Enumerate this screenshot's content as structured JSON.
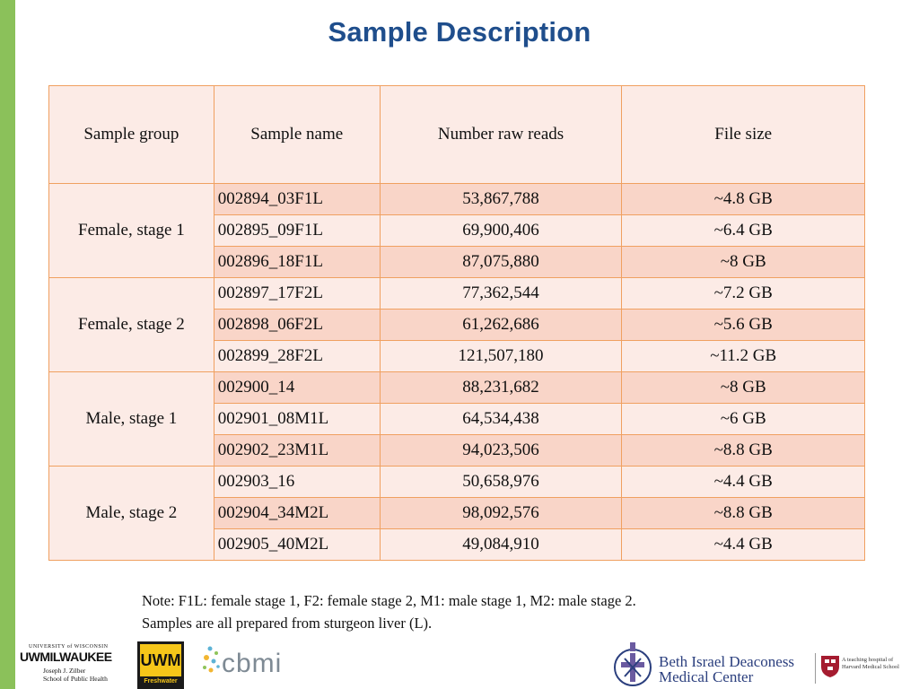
{
  "title": "Sample Description",
  "table": {
    "headers": [
      "Sample group",
      "Sample name",
      "Number raw reads",
      "File size"
    ],
    "groups": [
      {
        "group": "Female, stage 1",
        "rows": [
          {
            "name": "002894_03F1L",
            "reads": "53,867,788",
            "size": "~4.8 GB"
          },
          {
            "name": "002895_09F1L",
            "reads": "69,900,406",
            "size": "~6.4 GB"
          },
          {
            "name": "002896_18F1L",
            "reads": "87,075,880",
            "size": "~8 GB"
          }
        ]
      },
      {
        "group": "Female, stage 2",
        "rows": [
          {
            "name": "002897_17F2L",
            "reads": "77,362,544",
            "size": "~7.2 GB"
          },
          {
            "name": "002898_06F2L",
            "reads": "61,262,686",
            "size": "~5.6 GB"
          },
          {
            "name": "002899_28F2L",
            "reads": "121,507,180",
            "size": "~11.2 GB"
          }
        ]
      },
      {
        "group": "Male, stage 1",
        "rows": [
          {
            "name": "002900_14",
            "reads": "88,231,682",
            "size": "~8 GB"
          },
          {
            "name": "002901_08M1L",
            "reads": "64,534,438",
            "size": "~6 GB"
          },
          {
            "name": "002902_23M1L",
            "reads": "94,023,506",
            "size": "~8.8 GB"
          }
        ]
      },
      {
        "group": "Male, stage 2",
        "rows": [
          {
            "name": "002903_16",
            "reads": "50,658,976",
            "size": "~4.4 GB"
          },
          {
            "name": "002904_34M2L",
            "reads": "98,092,576",
            "size": "~8.8 GB"
          },
          {
            "name": "002905_40M2L",
            "reads": "49,084,910",
            "size": "~4.4 GB"
          }
        ]
      }
    ]
  },
  "note": {
    "line1": "Note: F1L: female stage 1, F2: female stage 2, M1: male stage 1, M2: male stage 2.",
    "line2": "Samples are all prepared from sturgeon liver (L)."
  },
  "logos": {
    "uwm": {
      "top": "UNIVERSITY of WISCONSIN",
      "main": "UWMILWAUKEE",
      "sub1": "Joseph J. Zilber",
      "sub2": "School of Public Health"
    },
    "freshwater": {
      "main": "UWM",
      "sub": "Freshwater"
    },
    "cbmi": {
      "text": "cbmi"
    },
    "bidmc": {
      "line1": "Beth Israel Deaconess",
      "line2": "Medical Center",
      "harvard1": "A teaching hospital of",
      "harvard2": "Harvard Medical School"
    }
  },
  "colors": {
    "title": "#1f4e8c",
    "accent_bar": "#8bc15a",
    "table_border": "#f0a060",
    "row_dark": "#f9d5c8",
    "row_light": "#fcebe6"
  }
}
